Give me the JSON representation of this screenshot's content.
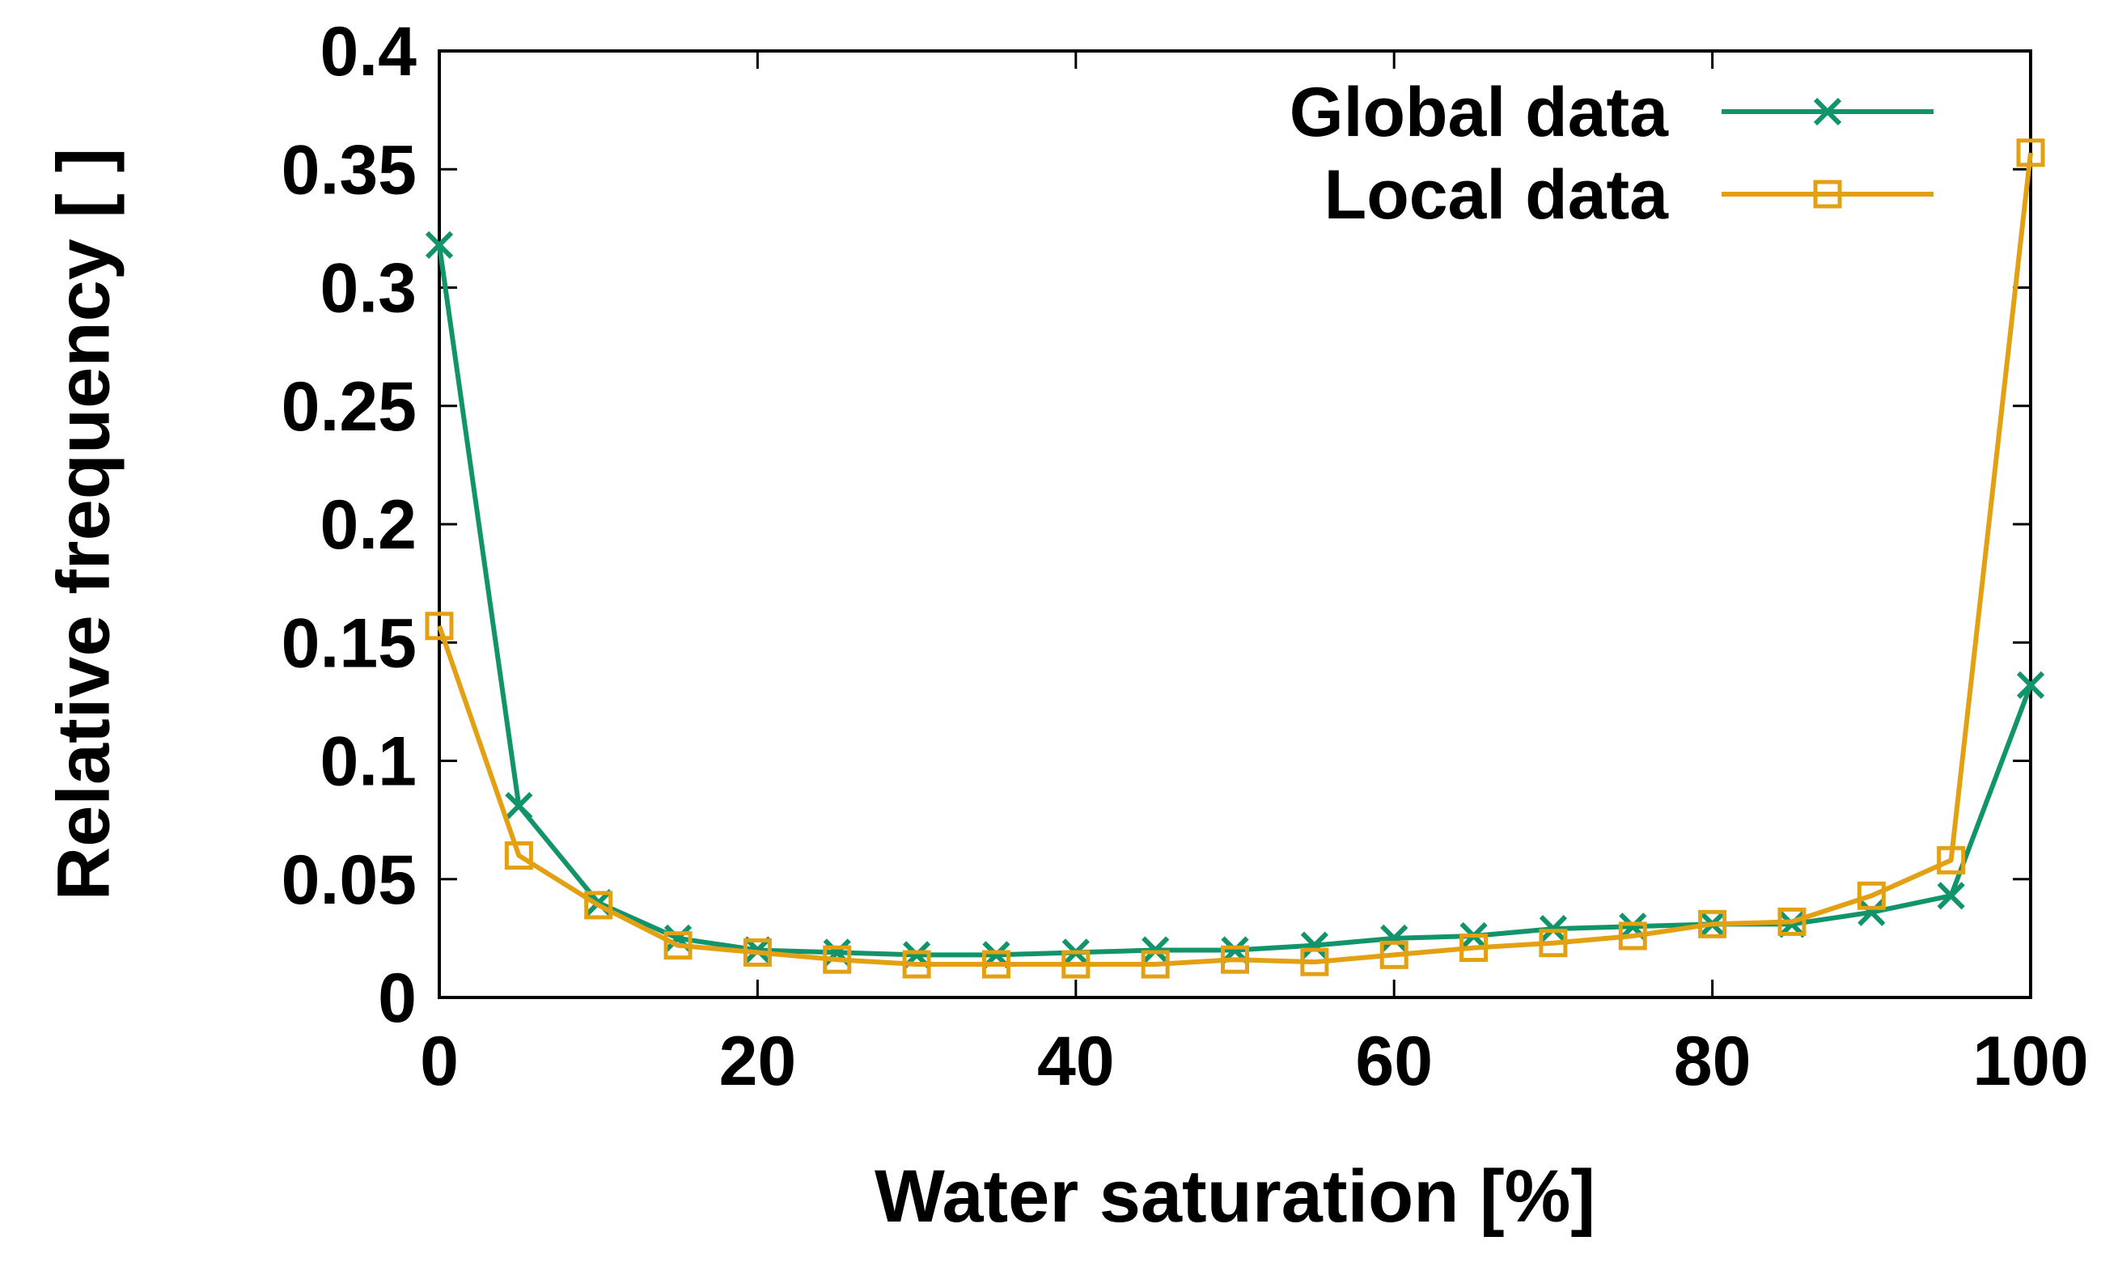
{
  "chart_data": {
    "type": "line",
    "title": "",
    "xlabel": "Water saturation [%]",
    "ylabel": "Relative frequency [ ]",
    "xlim": [
      0,
      100
    ],
    "ylim": [
      0,
      0.4
    ],
    "xticks": [
      0,
      20,
      40,
      60,
      80,
      100
    ],
    "xtick_labels": [
      "0",
      "20",
      "40",
      "60",
      "80",
      "100"
    ],
    "yticks": [
      0,
      0.05,
      0.1,
      0.15,
      0.2,
      0.25,
      0.3,
      0.35,
      0.4
    ],
    "ytick_labels": [
      "0",
      "0.05",
      "0.1",
      "0.15",
      "0.2",
      "0.25",
      "0.3",
      "0.35",
      "0.4"
    ],
    "grid": false,
    "legend_position": "top-right",
    "x": [
      0,
      5,
      10,
      15,
      20,
      25,
      30,
      35,
      40,
      45,
      50,
      55,
      60,
      65,
      70,
      75,
      80,
      85,
      90,
      95,
      100
    ],
    "series": [
      {
        "name": "Global data",
        "color": "#12946b",
        "marker": "x",
        "values": [
          0.318,
          0.081,
          0.04,
          0.025,
          0.02,
          0.019,
          0.018,
          0.018,
          0.019,
          0.02,
          0.02,
          0.022,
          0.025,
          0.026,
          0.029,
          0.03,
          0.031,
          0.031,
          0.036,
          0.043,
          0.132
        ]
      },
      {
        "name": "Local data",
        "color": "#e2a012",
        "marker": "square",
        "values": [
          0.157,
          0.06,
          0.039,
          0.022,
          0.019,
          0.016,
          0.014,
          0.014,
          0.014,
          0.014,
          0.016,
          0.015,
          0.018,
          0.021,
          0.023,
          0.026,
          0.031,
          0.032,
          0.043,
          0.058,
          0.357
        ]
      }
    ]
  }
}
